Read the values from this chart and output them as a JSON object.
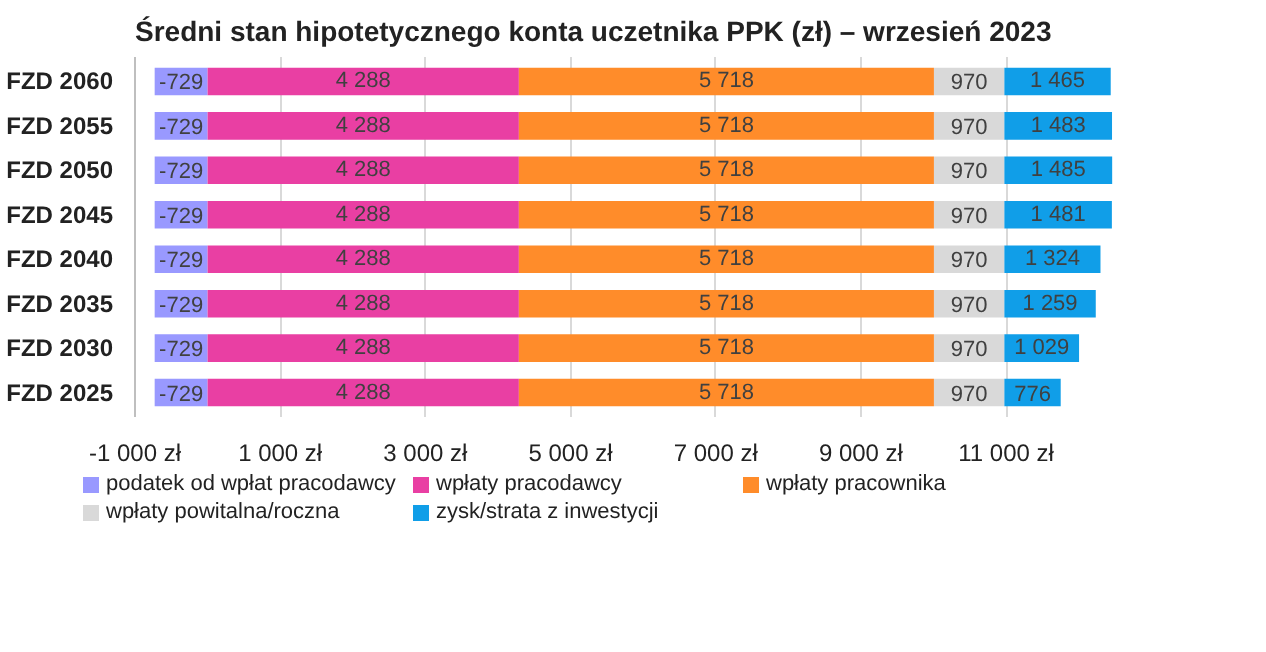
{
  "chart_data": {
    "type": "bar",
    "orientation": "horizontal",
    "stacked": true,
    "title": "Średni stan hipotetycznego konta uczetnika PPK (zł) – wrzesień 2023",
    "categories": [
      "FZD 2060",
      "FZD 2055",
      "FZD 2050",
      "FZD 2045",
      "FZD 2040",
      "FZD 2035",
      "FZD 2030",
      "FZD 2025"
    ],
    "series": [
      {
        "name": "podatek od wpłat pracodawcy",
        "color": "#9999ff",
        "values": [
          -729,
          -729,
          -729,
          -729,
          -729,
          -729,
          -729,
          -729
        ],
        "value_labels": [
          "-729",
          "-729",
          "-729",
          "-729",
          "-729",
          "-729",
          "-729",
          "-729"
        ]
      },
      {
        "name": "wpłaty pracodawcy",
        "color": "#e93fa3",
        "values": [
          4288,
          4288,
          4288,
          4288,
          4288,
          4288,
          4288,
          4288
        ],
        "value_labels": [
          "4 288",
          "4 288",
          "4 288",
          "4 288",
          "4 288",
          "4 288",
          "4 288",
          "4 288"
        ]
      },
      {
        "name": "wpłaty pracownika",
        "color": "#ff8c2a",
        "values": [
          5718,
          5718,
          5718,
          5718,
          5718,
          5718,
          5718,
          5718
        ],
        "value_labels": [
          "5 718",
          "5 718",
          "5 718",
          "5 718",
          "5 718",
          "5 718",
          "5 718",
          "5 718"
        ]
      },
      {
        "name": "wpłaty powitalna/roczna",
        "color": "#d9d9d9",
        "values": [
          970,
          970,
          970,
          970,
          970,
          970,
          970,
          970
        ],
        "value_labels": [
          "970",
          "970",
          "970",
          "970",
          "970",
          "970",
          "970",
          "970"
        ]
      },
      {
        "name": "zysk/strata z inwestycji",
        "color": "#109ee8",
        "values": [
          1465,
          1483,
          1485,
          1481,
          1324,
          1259,
          1029,
          776
        ],
        "value_labels": [
          "1 465",
          "1 483",
          "1 485",
          "1 481",
          "1 324",
          "1 259",
          "1 029",
          "776"
        ]
      }
    ],
    "xlim": [
      -1000,
      12500
    ],
    "xticks": [
      {
        "value": -1000,
        "label": "-1 000 zł"
      },
      {
        "value": 1000,
        "label": "1 000 zł"
      },
      {
        "value": 3000,
        "label": "3 000 zł"
      },
      {
        "value": 5000,
        "label": "5 000 zł"
      },
      {
        "value": 7000,
        "label": "7 000 zł"
      },
      {
        "value": 9000,
        "label": "9 000 zł"
      },
      {
        "value": 11000,
        "label": "11 000 zł"
      }
    ],
    "grid": "x",
    "legend": "bottom"
  }
}
